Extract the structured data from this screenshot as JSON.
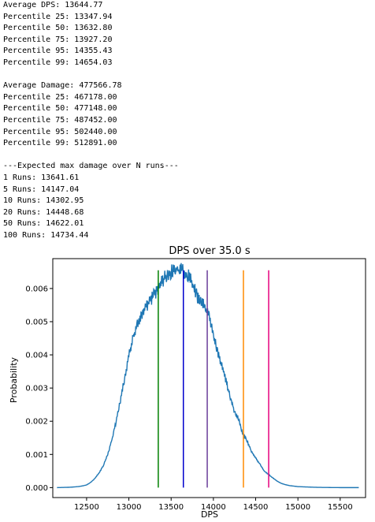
{
  "console": {
    "dps_block": [
      "Average DPS: 13644.77",
      "Percentile 25: 13347.94",
      "Percentile 50: 13632.80",
      "Percentile 75: 13927.20",
      "Percentile 95: 14355.43",
      "Percentile 99: 14654.03"
    ],
    "damage_block": [
      "Average Damage: 477566.78",
      "Percentile 25: 467178.00",
      "Percentile 50: 477148.00",
      "Percentile 75: 487452.00",
      "Percentile 95: 502440.00",
      "Percentile 99: 512891.00"
    ],
    "runs_block": [
      "---Expected max damage over N runs---",
      "1 Runs: 13641.61",
      "5 Runs: 14147.04",
      "10 Runs: 14302.95",
      "20 Runs: 14448.68",
      "50 Runs: 14622.01",
      "100 Runs: 14734.44"
    ]
  },
  "chart_data": {
    "type": "line",
    "title": "DPS over 35.0 s",
    "xlabel": "DPS",
    "ylabel": "Probability",
    "xlim": [
      12100,
      15800
    ],
    "ylim": [
      -0.0003,
      0.0069
    ],
    "xticks": [
      12500,
      13000,
      13500,
      14000,
      14500,
      15000,
      15500
    ],
    "xtick_labels": [
      "12500",
      "13000",
      "13500",
      "14000",
      "14500",
      "15000",
      "15500"
    ],
    "yticks": [
      0.0,
      0.001,
      0.002,
      0.003,
      0.004,
      0.005,
      0.006
    ],
    "ytick_labels": [
      "0.000",
      "0.001",
      "0.002",
      "0.003",
      "0.004",
      "0.005",
      "0.006"
    ],
    "curve": {
      "color": "#1f77b4",
      "x": [
        12150,
        12300,
        12400,
        12450,
        12500,
        12550,
        12600,
        12650,
        12700,
        12750,
        12800,
        12850,
        12900,
        12950,
        13000,
        13050,
        13100,
        13150,
        13200,
        13250,
        13300,
        13350,
        13400,
        13450,
        13500,
        13550,
        13600,
        13650,
        13700,
        13750,
        13800,
        13850,
        13900,
        13950,
        14000,
        14050,
        14100,
        14150,
        14200,
        14250,
        14300,
        14350,
        14400,
        14450,
        14500,
        14550,
        14600,
        14650,
        14700,
        14750,
        14800,
        14850,
        14900,
        15000,
        15100,
        15200,
        15300,
        15500,
        15720
      ],
      "y": [
        0.0,
        1e-05,
        3e-05,
        5e-05,
        8e-05,
        0.00016,
        0.00028,
        0.00045,
        0.00068,
        0.001,
        0.00145,
        0.002,
        0.00262,
        0.0033,
        0.00398,
        0.0045,
        0.0049,
        0.0052,
        0.0054,
        0.00565,
        0.0058,
        0.006,
        0.00625,
        0.0064,
        0.0065,
        0.00658,
        0.00655,
        0.00652,
        0.0064,
        0.00615,
        0.0058,
        0.0056,
        0.00545,
        0.0052,
        0.0046,
        0.0041,
        0.00365,
        0.0032,
        0.0027,
        0.0023,
        0.00205,
        0.0016,
        0.0014,
        0.0011,
        0.0009,
        0.0007,
        0.0005,
        0.0004,
        0.0003,
        0.0002,
        0.00013,
        9e-05,
        6e-05,
        3e-05,
        2e-05,
        1e-05,
        5e-06,
        0.0,
        0.0
      ]
    },
    "vlines": [
      {
        "x": 13347.94,
        "color": "#008000"
      },
      {
        "x": 13644.77,
        "color": "#0000cd"
      },
      {
        "x": 13927.2,
        "color": "#6a3d9a"
      },
      {
        "x": 14355.43,
        "color": "#ff8c00"
      },
      {
        "x": 14654.03,
        "color": "#e6007e"
      }
    ],
    "grid": false
  }
}
